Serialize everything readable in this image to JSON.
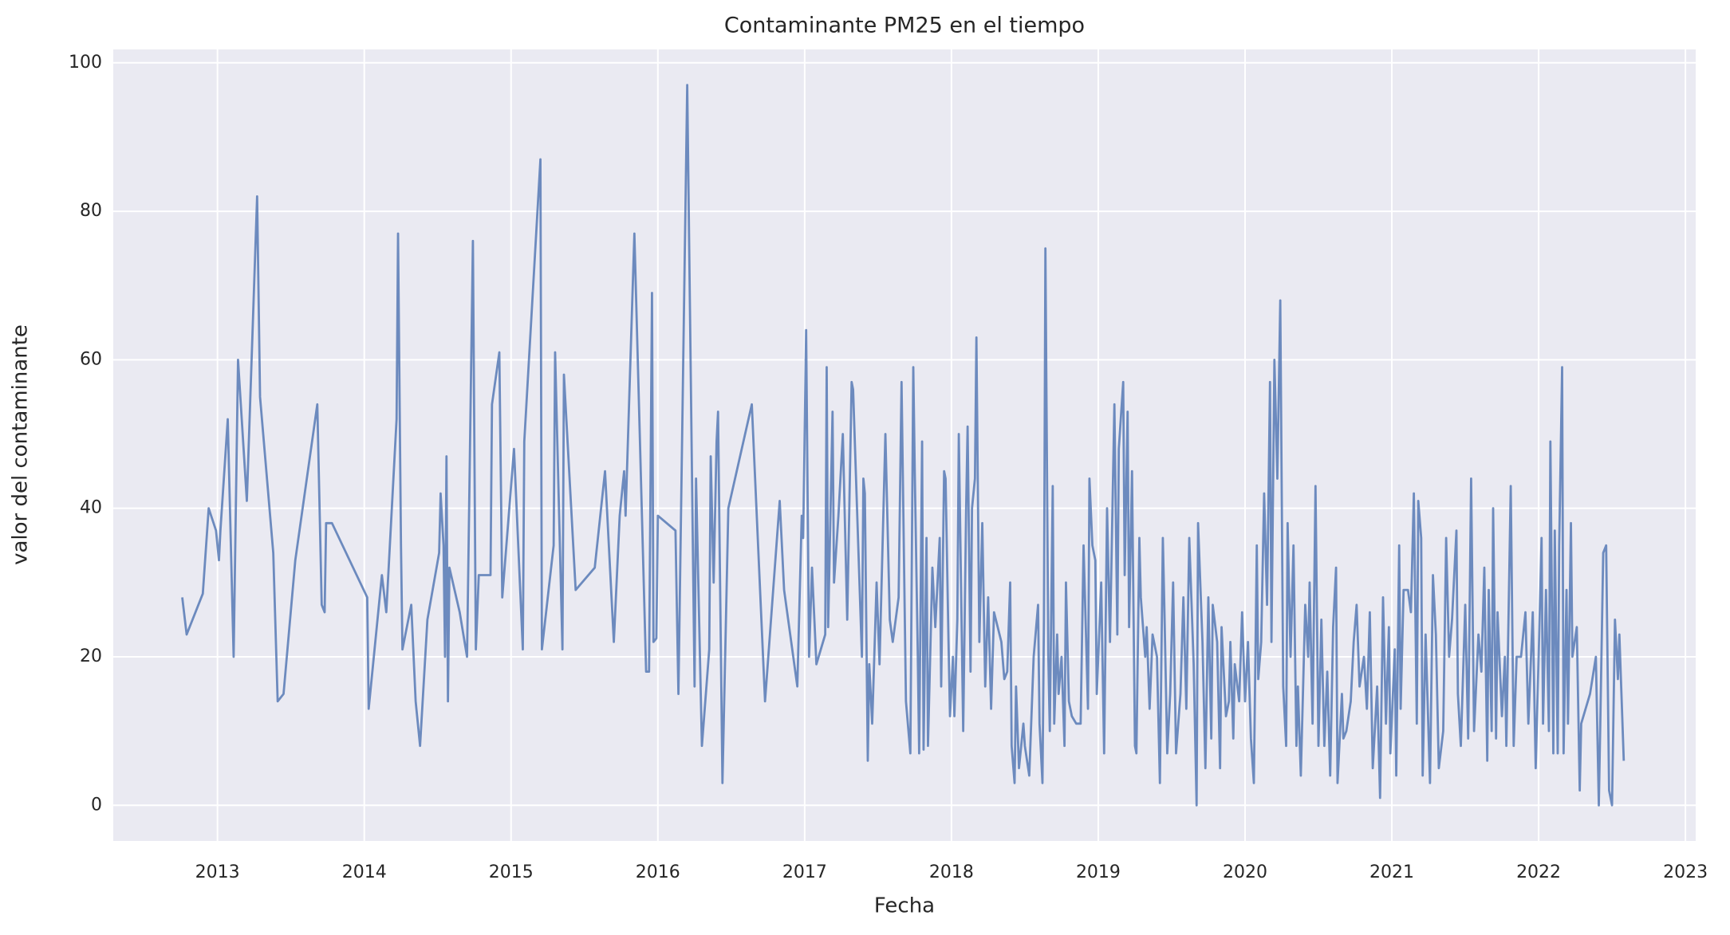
{
  "chart_data": {
    "type": "line",
    "title": "Contaminante PM25 en el tiempo",
    "xlabel": "Fecha",
    "ylabel": "valor del contaminante",
    "color": "#4c72b0",
    "grid": true,
    "xlim": [
      2012.29,
      2023.07
    ],
    "ylim": [
      -4.8,
      101.8
    ],
    "xticks": [
      2013,
      2014,
      2015,
      2016,
      2017,
      2018,
      2019,
      2020,
      2021,
      2022,
      2023
    ],
    "yticks": [
      0,
      20,
      40,
      60,
      80,
      100
    ],
    "x": [
      2012.76,
      2012.79,
      2012.9,
      2012.94,
      2012.99,
      2013.01,
      2013.02,
      2013.07,
      2013.11,
      2013.14,
      2013.2,
      2013.27,
      2013.29,
      2013.38,
      2013.41,
      2013.45,
      2013.53,
      2013.68,
      2013.71,
      2013.73,
      2013.74,
      2013.78,
      2014.02,
      2014.03,
      2014.12,
      2014.15,
      2014.22,
      2014.23,
      2014.25,
      2014.26,
      2014.32,
      2014.35,
      2014.38,
      2014.43,
      2014.51,
      2014.52,
      2014.54,
      2014.55,
      2014.56,
      2014.57,
      2014.58,
      2014.65,
      2014.7,
      2014.74,
      2014.76,
      2014.78,
      2014.86,
      2014.87,
      2014.92,
      2014.94,
      2015.02,
      2015.08,
      2015.09,
      2015.2,
      2015.21,
      2015.29,
      2015.3,
      2015.35,
      2015.36,
      2015.44,
      2015.57,
      2015.64,
      2015.7,
      2015.74,
      2015.77,
      2015.78,
      2015.84,
      2015.92,
      2015.94,
      2015.96,
      2015.97,
      2015.99,
      2016.0,
      2016.12,
      2016.14,
      2016.2,
      2016.25,
      2016.26,
      2016.3,
      2016.35,
      2016.36,
      2016.38,
      2016.4,
      2016.41,
      2016.44,
      2016.48,
      2016.64,
      2016.73,
      2016.83,
      2016.86,
      2016.95,
      2016.98,
      2016.99,
      2017.01,
      2017.03,
      2017.05,
      2017.08,
      2017.14,
      2017.15,
      2017.16,
      2017.19,
      2017.2,
      2017.23,
      2017.26,
      2017.29,
      2017.32,
      2017.33,
      2017.39,
      2017.4,
      2017.41,
      2017.43,
      2017.44,
      2017.46,
      2017.49,
      2017.51,
      2017.55,
      2017.58,
      2017.6,
      2017.64,
      2017.66,
      2017.69,
      2017.72,
      2017.74,
      2017.75,
      2017.77,
      2017.78,
      2017.8,
      2017.81,
      2017.83,
      2017.84,
      2017.87,
      2017.89,
      2017.92,
      2017.93,
      2017.95,
      2017.96,
      2017.98,
      2017.99,
      2018.01,
      2018.02,
      2018.04,
      2018.05,
      2018.08,
      2018.1,
      2018.11,
      2018.13,
      2018.14,
      2018.16,
      2018.17,
      2018.19,
      2018.21,
      2018.23,
      2018.25,
      2018.27,
      2018.29,
      2018.34,
      2018.36,
      2018.38,
      2018.4,
      2018.41,
      2018.43,
      2018.44,
      2018.46,
      2018.49,
      2018.5,
      2018.53,
      2018.56,
      2018.59,
      2018.6,
      2018.62,
      2018.63,
      2018.64,
      2018.66,
      2018.67,
      2018.69,
      2018.7,
      2018.72,
      2018.73,
      2018.75,
      2018.77,
      2018.78,
      2018.8,
      2018.82,
      2018.85,
      2018.88,
      2018.9,
      2018.93,
      2018.94,
      2018.96,
      2018.98,
      2018.99,
      2019.02,
      2019.04,
      2019.06,
      2019.08,
      2019.11,
      2019.13,
      2019.14,
      2019.17,
      2019.18,
      2019.2,
      2019.21,
      2019.23,
      2019.25,
      2019.26,
      2019.28,
      2019.29,
      2019.32,
      2019.33,
      2019.35,
      2019.37,
      2019.4,
      2019.42,
      2019.44,
      2019.45,
      2019.47,
      2019.49,
      2019.51,
      2019.53,
      2019.56,
      2019.58,
      2019.6,
      2019.62,
      2019.65,
      2019.67,
      2019.68,
      2019.71,
      2019.73,
      2019.75,
      2019.77,
      2019.78,
      2019.81,
      2019.83,
      2019.84,
      2019.87,
      2019.89,
      2019.9,
      2019.92,
      2019.93,
      2019.96,
      2019.98,
      2020.0,
      2020.02,
      2020.04,
      2020.06,
      2020.08,
      2020.09,
      2020.11,
      2020.13,
      2020.15,
      2020.17,
      2020.18,
      2020.2,
      2020.22,
      2020.24,
      2020.26,
      2020.28,
      2020.29,
      2020.31,
      2020.33,
      2020.35,
      2020.36,
      2020.38,
      2020.41,
      2020.43,
      2020.44,
      2020.46,
      2020.48,
      2020.5,
      2020.52,
      2020.54,
      2020.56,
      2020.58,
      2020.6,
      2020.62,
      2020.63,
      2020.66,
      2020.67,
      2020.69,
      2020.72,
      2020.74,
      2020.76,
      2020.78,
      2020.81,
      2020.83,
      2020.85,
      2020.87,
      2020.9,
      2020.92,
      2020.94,
      2020.96,
      2020.98,
      2020.99,
      2021.02,
      2021.03,
      2021.05,
      2021.06,
      2021.08,
      2021.11,
      2021.13,
      2021.15,
      2021.17,
      2021.18,
      2021.2,
      2021.21,
      2021.23,
      2021.26,
      2021.28,
      2021.3,
      2021.32,
      2021.35,
      2021.37,
      2021.39,
      2021.41,
      2021.44,
      2021.45,
      2021.47,
      2021.5,
      2021.52,
      2021.54,
      2021.56,
      2021.59,
      2021.61,
      2021.63,
      2021.65,
      2021.66,
      2021.68,
      2021.69,
      2021.71,
      2021.72,
      2021.75,
      2021.77,
      2021.78,
      2021.81,
      2021.83,
      2021.85,
      2021.88,
      2021.91,
      2021.93,
      2021.96,
      2021.98,
      2022.0,
      2022.02,
      2022.03,
      2022.05,
      2022.07,
      2022.08,
      2022.1,
      2022.11,
      2022.13,
      2022.14,
      2022.16,
      2022.17,
      2022.19,
      2022.2,
      2022.22,
      2022.23,
      2022.26,
      2022.28,
      2022.29,
      2022.35,
      2022.39,
      2022.41,
      2022.42,
      2022.44,
      2022.46,
      2022.48,
      2022.5,
      2022.52,
      2022.54,
      2022.55,
      2022.58
    ],
    "values": [
      28,
      23,
      28.5,
      40,
      37,
      33,
      37,
      52,
      20,
      60,
      41,
      82,
      55,
      34,
      14,
      15,
      33,
      54,
      27,
      26,
      38,
      38,
      28,
      13,
      31,
      26,
      52,
      77,
      35,
      21,
      27,
      14,
      8,
      25,
      34,
      42,
      35,
      20,
      47,
      14,
      32,
      26,
      20,
      76,
      21,
      31,
      31,
      54,
      61,
      28,
      48,
      21,
      49,
      87,
      21,
      35,
      61,
      21,
      58,
      29,
      32,
      45,
      22,
      39,
      45,
      39,
      77,
      18,
      18,
      69,
      22,
      22.5,
      39,
      37,
      15,
      97,
      16,
      44,
      8,
      21,
      47,
      30,
      49,
      53,
      3,
      40,
      54,
      14,
      41,
      29,
      16,
      39,
      36,
      64,
      20,
      32,
      19,
      23,
      59,
      24,
      53,
      30,
      39,
      50,
      25,
      57,
      56,
      20,
      44,
      42,
      6,
      19,
      11,
      30,
      19,
      50,
      25,
      22,
      28,
      57,
      14,
      7,
      59,
      45,
      21,
      7,
      49,
      7.5,
      36,
      8,
      32,
      24,
      36,
      16,
      45,
      44,
      22,
      12,
      20,
      12,
      25,
      50,
      10,
      40,
      51,
      18,
      40,
      44,
      63,
      22,
      38,
      16,
      28,
      13,
      26,
      22,
      17,
      18,
      30,
      8,
      3,
      16,
      5,
      11,
      8,
      4,
      20,
      27,
      11,
      3,
      25,
      75,
      20,
      10,
      43,
      11,
      23,
      15,
      20,
      8,
      30,
      14,
      12,
      11,
      11,
      35,
      13,
      44,
      35,
      33,
      15,
      30,
      7,
      40,
      22,
      54,
      23,
      48,
      57,
      31,
      53,
      24,
      45,
      8,
      7,
      36,
      28,
      20,
      24,
      13,
      23,
      20,
      3,
      36,
      27,
      7,
      15,
      30,
      7,
      15,
      28,
      13,
      36,
      19,
      0,
      38,
      22,
      5,
      28,
      9,
      27,
      22,
      5,
      24,
      12,
      14,
      22,
      9,
      19,
      14,
      26,
      14,
      22,
      9,
      3,
      35,
      17,
      22,
      42,
      27,
      57,
      22,
      60,
      44,
      68,
      16,
      8,
      38,
      20,
      35,
      8,
      16,
      4,
      27,
      20,
      30,
      11,
      43,
      8,
      25,
      8,
      18,
      4,
      24,
      32,
      3,
      15,
      9,
      10,
      14,
      22,
      27,
      16,
      20,
      13,
      26,
      5,
      16,
      1,
      28,
      11,
      24,
      7,
      21,
      4,
      35,
      13,
      29,
      29,
      26,
      42,
      11,
      41,
      36,
      4,
      23,
      3,
      31,
      23,
      5,
      10,
      36,
      20,
      25,
      37,
      15,
      8,
      27,
      9,
      44,
      10,
      23,
      18,
      32,
      6,
      29,
      10,
      40,
      9,
      26,
      12,
      20,
      8,
      43,
      8,
      20,
      20,
      26,
      11,
      26,
      5,
      20,
      36,
      11,
      29,
      10,
      49,
      7,
      37,
      7,
      35,
      59,
      7,
      29,
      11,
      38,
      20,
      24,
      2,
      11,
      15,
      20,
      0,
      11,
      34,
      35,
      2,
      0,
      25,
      17,
      23,
      6
    ]
  }
}
